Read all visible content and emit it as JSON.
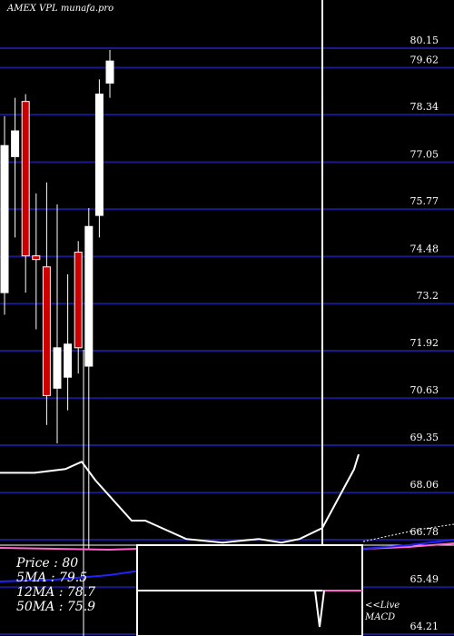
{
  "header": {
    "title": "AMEX VPL munafa.pro"
  },
  "info": {
    "price": "Price  : 80",
    "ma5": "5MA : 79.5",
    "ma12": "12MA : 78.7",
    "ma50": "50MA : 75.9"
  },
  "live_label": {
    "line1": "<<Live",
    "line2": "MACD"
  },
  "colors": {
    "background": "#000000",
    "grid": "#1a1a8c",
    "up": "#ffffff",
    "down": "#cc0000",
    "ma_line": "#ffffff",
    "macd_line": "#2222ff",
    "macd_signal": "#ff66cc"
  },
  "chart_data": {
    "type": "candlestick",
    "title": "AMEX VPL munafa.pro",
    "ylim": [
      64.21,
      81.0
    ],
    "yticks": [
      "80.15",
      "79.62",
      "78.34",
      "77.05",
      "75.77",
      "74.48",
      "73.2",
      "71.92",
      "70.63",
      "69.35",
      "68.06",
      "66.78",
      "65.49",
      "64.21"
    ],
    "candles": [
      {
        "open": 73.5,
        "high": 78.3,
        "low": 72.9,
        "close": 77.5
      },
      {
        "open": 77.2,
        "high": 78.8,
        "low": 75.0,
        "close": 77.9
      },
      {
        "open": 78.7,
        "high": 78.9,
        "low": 73.5,
        "close": 74.5
      },
      {
        "open": 74.5,
        "high": 76.2,
        "low": 72.5,
        "close": 74.4
      },
      {
        "open": 74.2,
        "high": 76.5,
        "low": 69.9,
        "close": 70.7
      },
      {
        "open": 70.9,
        "high": 75.9,
        "low": 69.4,
        "close": 72.0
      },
      {
        "open": 71.2,
        "high": 74.0,
        "low": 70.3,
        "close": 72.1
      },
      {
        "open": 74.6,
        "high": 74.9,
        "low": 71.3,
        "close": 72.0
      },
      {
        "open": 71.5,
        "high": 75.8,
        "low": 66.5,
        "close": 75.3
      },
      {
        "open": 75.6,
        "high": 79.3,
        "low": 75.0,
        "close": 78.9
      },
      {
        "open": 79.2,
        "high": 80.1,
        "low": 78.8,
        "close": 79.8
      }
    ],
    "ma_line": [
      68.6,
      68.6,
      68.7,
      68.9,
      68.4,
      67.3,
      67.3,
      66.8,
      66.7,
      66.8,
      66.7,
      66.8,
      67.1,
      68.7,
      69.1
    ]
  }
}
